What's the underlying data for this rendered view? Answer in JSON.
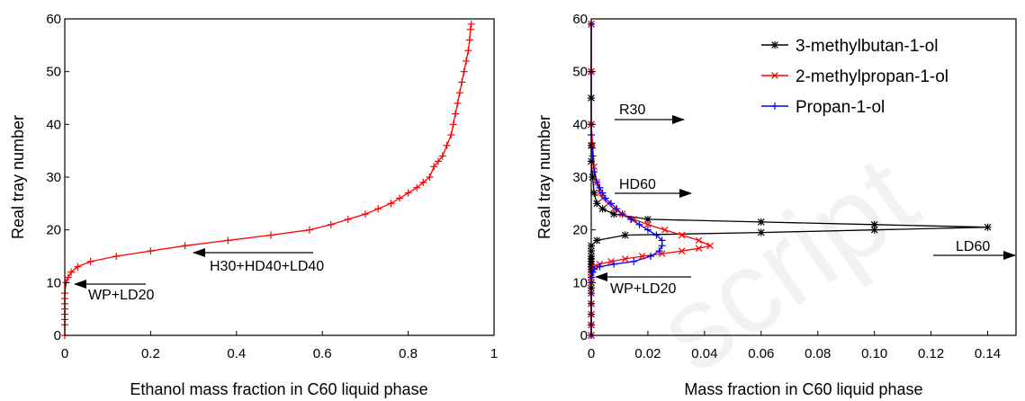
{
  "chart_data": [
    {
      "type": "line",
      "title": "",
      "xlabel": "Ethanol mass fraction in C60 liquid phase",
      "ylabel": "Real tray number",
      "xlim": [
        0,
        1
      ],
      "ylim": [
        0,
        60
      ],
      "xticks": [
        "0",
        "0.2",
        "0.4",
        "0.6",
        "0.8",
        "1"
      ],
      "yticks": [
        "0",
        "10",
        "20",
        "30",
        "40",
        "50",
        "60"
      ],
      "grid": false,
      "series": [
        {
          "color": "#ff0000",
          "marker": "plus",
          "x": [
            0.0,
            0.0,
            0.0,
            0.0,
            0.0,
            0.0,
            0.0,
            0.0,
            0.003,
            0.008,
            0.015,
            0.03,
            0.06,
            0.12,
            0.2,
            0.28,
            0.38,
            0.48,
            0.57,
            0.62,
            0.66,
            0.7,
            0.73,
            0.76,
            0.78,
            0.8,
            0.82,
            0.835,
            0.85,
            0.86,
            0.87,
            0.88,
            0.89,
            0.9,
            0.905,
            0.91,
            0.915,
            0.92,
            0.925,
            0.93,
            0.935,
            0.94,
            0.943,
            0.945,
            0.947
          ],
          "y": [
            0,
            2,
            3,
            4,
            5,
            6,
            7,
            8,
            10,
            11,
            12,
            13,
            14,
            15,
            16,
            17,
            18,
            19,
            20,
            21,
            22,
            23,
            24,
            25,
            26,
            27,
            28,
            29,
            30,
            32,
            33,
            34,
            36,
            38,
            40,
            42,
            44,
            46,
            48,
            50,
            52,
            54,
            56,
            58,
            59
          ]
        }
      ],
      "annotations": [
        {
          "text": "H30+HD40+LD40",
          "x": 0.32,
          "y": 14
        },
        {
          "text": "WP+LD20",
          "x": 0.06,
          "y": 8
        }
      ]
    },
    {
      "type": "line",
      "title": "",
      "xlabel": "Mass fraction in C60 liquid phase",
      "ylabel": "Real tray number",
      "xlim": [
        0,
        0.15
      ],
      "ylim": [
        0,
        60
      ],
      "xticks": [
        "0",
        "0.02",
        "0.04",
        "0.06",
        "0.08",
        "0.10",
        "0.12",
        "0.14"
      ],
      "yticks": [
        "0",
        "10",
        "20",
        "30",
        "40",
        "50",
        "60"
      ],
      "grid": false,
      "legend": "top-right",
      "series": [
        {
          "name": "3-methylbutan-1-ol",
          "color": "#000000",
          "marker": "star",
          "x": [
            0.0,
            0.0,
            0.0,
            0.0,
            0.0,
            0.0,
            0.0,
            0.0,
            0.0,
            0.0,
            0.0,
            0.0,
            0.0,
            0.0,
            0.0,
            0.0,
            0.0,
            0.002,
            0.012,
            0.06,
            0.1,
            0.14,
            0.1,
            0.06,
            0.02,
            0.008,
            0.004,
            0.002,
            0.001,
            0.0005,
            0.0,
            0.0,
            0.0,
            0.0,
            0.0,
            0.0
          ],
          "y": [
            0,
            2,
            4,
            6,
            8,
            9,
            10,
            11,
            12,
            12.5,
            13,
            13.5,
            14,
            14.5,
            15,
            16,
            17,
            18,
            19,
            19.5,
            20,
            20.5,
            21,
            21.5,
            22,
            23,
            24,
            25,
            27,
            30,
            33,
            36,
            40,
            45,
            50,
            59
          ]
        },
        {
          "name": "2-methylpropan-1-ol",
          "color": "#ff0000",
          "marker": "x",
          "x": [
            0.0,
            0.0,
            0.0,
            0.0,
            0.0,
            0.0,
            0.0,
            0.0,
            0.0005,
            0.001,
            0.003,
            0.007,
            0.012,
            0.018,
            0.025,
            0.032,
            0.038,
            0.042,
            0.038,
            0.032,
            0.026,
            0.02,
            0.015,
            0.011,
            0.008,
            0.006,
            0.004,
            0.003,
            0.002,
            0.001,
            0.0005,
            0.0,
            0.0,
            0.0
          ],
          "y": [
            0,
            2,
            4,
            6,
            8,
            10,
            11,
            12,
            12.5,
            13,
            13.5,
            14,
            14.5,
            15,
            15.5,
            16,
            16.5,
            17,
            18,
            19,
            20,
            21,
            22,
            23,
            24,
            25,
            26,
            27,
            29,
            32,
            36,
            40,
            50,
            59
          ]
        },
        {
          "name": "Propan-1-ol",
          "color": "#0000ff",
          "marker": "plus",
          "x": [
            0.0,
            0.0,
            0.0,
            0.0,
            0.0,
            0.0,
            0.0,
            0.0005,
            0.001,
            0.003,
            0.008,
            0.015,
            0.021,
            0.024,
            0.025,
            0.025,
            0.023,
            0.02,
            0.017,
            0.014,
            0.011,
            0.009,
            0.007,
            0.005,
            0.004,
            0.003,
            0.002,
            0.001,
            0.0005,
            0.0,
            0.0,
            0.0
          ],
          "y": [
            0,
            2,
            4,
            6,
            8,
            10,
            11,
            12,
            12.5,
            13,
            13.5,
            14,
            15,
            16,
            17,
            18,
            19,
            20,
            21,
            22,
            23,
            24,
            25,
            26,
            27,
            28,
            29,
            31,
            34,
            38,
            50,
            59
          ]
        }
      ],
      "annotations": [
        {
          "text": "R30",
          "x": 0.032,
          "y": 41
        },
        {
          "text": "HD60",
          "x": 0.035,
          "y": 26.5
        },
        {
          "text": "LD60",
          "x": 0.148,
          "y": 15
        },
        {
          "text": "WP+LD20",
          "x": 0.002,
          "y": 11
        }
      ]
    }
  ],
  "watermark": "script"
}
